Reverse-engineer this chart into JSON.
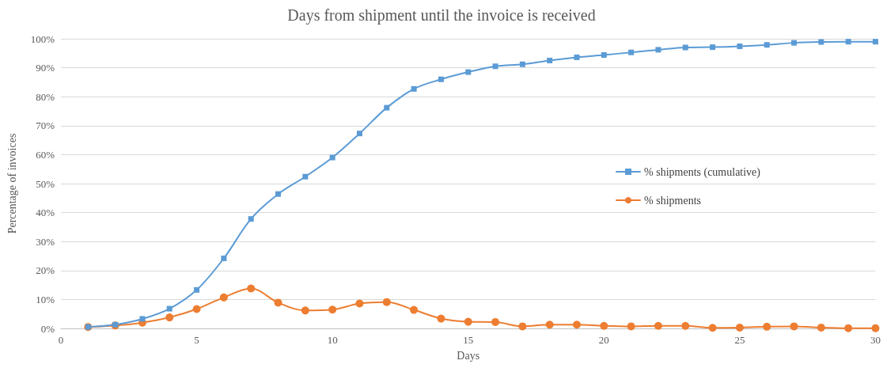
{
  "chart_data": {
    "type": "line",
    "title": "Days from shipment until the invoice is received",
    "xlabel": "Days",
    "ylabel": "Percentage of invoices",
    "x": [
      1,
      2,
      3,
      4,
      5,
      6,
      7,
      8,
      9,
      10,
      11,
      12,
      13,
      14,
      15,
      16,
      17,
      18,
      19,
      20,
      21,
      22,
      23,
      24,
      25,
      26,
      27,
      28,
      29,
      30
    ],
    "series": [
      {
        "name": "% shipments (cumulative)",
        "color": "#5b9bd5",
        "marker": "square",
        "values": [
          0.5,
          1.3,
          3.3,
          6.8,
          13.3,
          24.2,
          37.8,
          46.4,
          52.4,
          59,
          67.3,
          76.2,
          82.7,
          86,
          88.5,
          90.5,
          91.2,
          92.5,
          93.6,
          94.4,
          95.3,
          96.2,
          97,
          97.1,
          97.4,
          97.9,
          98.6,
          98.9,
          99,
          99
        ]
      },
      {
        "name": "% shipments",
        "color": "#ed7d31",
        "marker": "circle",
        "values": [
          0.5,
          1,
          2,
          3.8,
          6.7,
          10.7,
          13.8,
          8.9,
          6.2,
          6.5,
          8.6,
          9.1,
          6.4,
          3.4,
          2.3,
          2.2,
          0.7,
          1.3,
          1.3,
          0.9,
          0.7,
          0.9,
          0.9,
          0.2,
          0.3,
          0.6,
          0.7,
          0.3,
          0.1,
          0.1
        ]
      }
    ],
    "xlim": [
      0,
      30
    ],
    "xticks": [
      0,
      5,
      10,
      15,
      20,
      25,
      30
    ],
    "ylim": [
      0,
      100
    ],
    "yticks": [
      {
        "value": 0,
        "label": "0%"
      },
      {
        "value": 10,
        "label": "10%"
      },
      {
        "value": 20,
        "label": "20%"
      },
      {
        "value": 30,
        "label": "30%"
      },
      {
        "value": 40,
        "label": "40%"
      },
      {
        "value": 50,
        "label": "50%"
      },
      {
        "value": 60,
        "label": "60%"
      },
      {
        "value": 70,
        "label": "70%"
      },
      {
        "value": 80,
        "label": "80%"
      },
      {
        "value": 90,
        "label": "90%"
      },
      {
        "value": 100,
        "label": "100%"
      }
    ],
    "grid": "y",
    "legend": "right",
    "line_style": "solid"
  }
}
